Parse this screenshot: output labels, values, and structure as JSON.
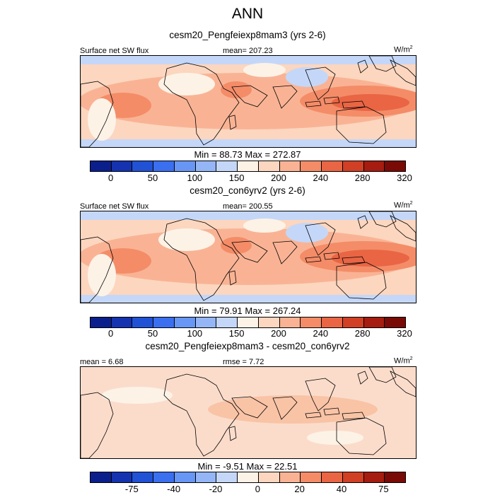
{
  "title": "ANN",
  "panels": [
    {
      "subtitle": "cesm20_Pengfeiexp8mam3 (yrs 2-6)",
      "left_label": "Surface net SW flux",
      "center_label": "mean= 207.23",
      "units_base": "W/m",
      "units_exp": "2",
      "minmax": "Min =  88.73 Max = 272.87",
      "colorbar_ticks": [
        "0",
        "50",
        "100",
        "150",
        "200",
        "240",
        "280",
        "320"
      ]
    },
    {
      "subtitle": "cesm20_con6yrv2 (yrs 2-6)",
      "left_label": "Surface net SW flux",
      "center_label": "mean= 200.55",
      "units_base": "W/m",
      "units_exp": "2",
      "minmax": "Min =  79.91 Max = 267.24",
      "colorbar_ticks": [
        "0",
        "50",
        "100",
        "150",
        "200",
        "240",
        "280",
        "320"
      ]
    },
    {
      "subtitle": "cesm20_Pengfeiexp8mam3 - cesm20_con6yrv2",
      "left_label": "mean =   6.68",
      "center_label": "rmse =   7.72",
      "units_base": "W/m",
      "units_exp": "2",
      "minmax": "Min =  -9.51 Max =  22.51",
      "colorbar_ticks": [
        "-75",
        "-40",
        "-20",
        "0",
        "20",
        "40",
        "75"
      ]
    }
  ],
  "colors": {
    "colorbar": [
      "#0b1f8c",
      "#1533b0",
      "#2152d6",
      "#3a6ff0",
      "#6796f5",
      "#95b6f6",
      "#c4d7f8",
      "#fdf2e6",
      "#fcd6bf",
      "#f9b394",
      "#f48c68",
      "#e96544",
      "#d13f25",
      "#a71c10",
      "#7a0a05"
    ],
    "coast": "#000000"
  }
}
